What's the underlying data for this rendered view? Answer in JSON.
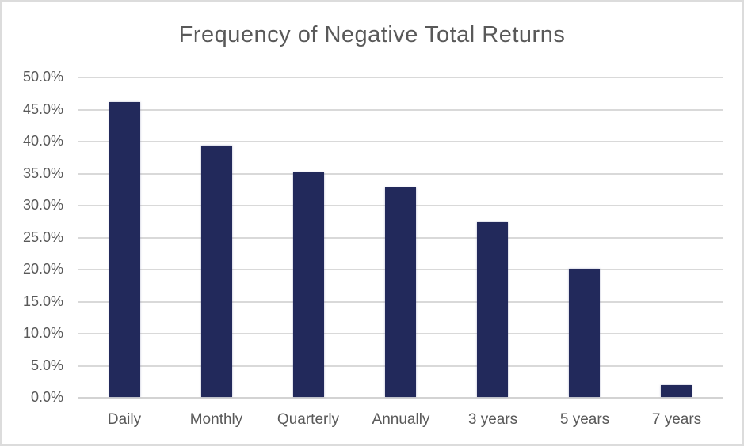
{
  "chart_data": {
    "type": "bar",
    "title": "Frequency of Negative Total Returns",
    "categories": [
      "Daily",
      "Monthly",
      "Quarterly",
      "Annually",
      "3 years",
      "5 years",
      "7 years"
    ],
    "values": [
      46.0,
      39.2,
      35.0,
      32.7,
      27.3,
      20.0,
      1.8
    ],
    "y_ticks": [
      "50.0%",
      "45.0%",
      "40.0%",
      "35.0%",
      "30.0%",
      "25.0%",
      "20.0%",
      "15.0%",
      "10.0%",
      "5.0%",
      "0.0%"
    ],
    "ylim": [
      0,
      50
    ],
    "y_step": 5,
    "xlabel": "",
    "ylabel": "",
    "grid": true,
    "legend": "none",
    "colors": {
      "bar": "#22295B",
      "gridline": "#D9D9D9",
      "axis_line": "#D3D3D3",
      "tick_text": "#595959",
      "title_text": "#595959",
      "background": "#FFFFFF",
      "frame_border": "#DCDCDC"
    }
  }
}
